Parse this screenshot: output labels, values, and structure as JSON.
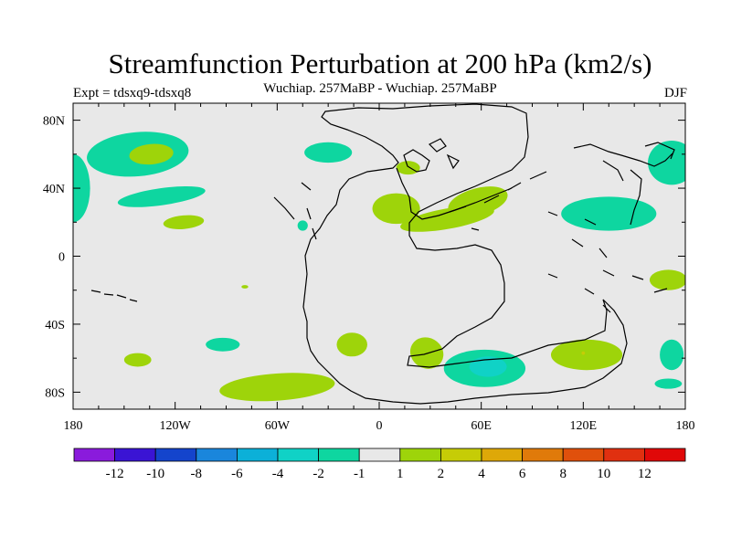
{
  "chart_data": {
    "type": "heatmap",
    "title": "Streamfunction Perturbation at 200 hPa (km2/s)",
    "left_label": "Expt = tdsxq9-tdsxq8",
    "center_label": "Wuchiap. 257MaBP - Wuchiap. 257MaBP",
    "right_label": "DJF",
    "x_ticks": [
      "180",
      "120W",
      "60W",
      "0",
      "60E",
      "120E",
      "180"
    ],
    "x_tick_values": [
      -180,
      -120,
      -60,
      0,
      60,
      120,
      180
    ],
    "y_ticks": [
      "80N",
      "40N",
      "0",
      "40S",
      "80S"
    ],
    "y_tick_values": [
      80,
      40,
      0,
      -40,
      -80
    ],
    "xlim": [
      -180,
      180
    ],
    "ylim": [
      -90,
      90
    ],
    "colorbar": {
      "labels": [
        "-12",
        "-10",
        "-8",
        "-6",
        "-4",
        "-2",
        "-1",
        "1",
        "2",
        "4",
        "6",
        "8",
        "10",
        "12"
      ],
      "colors": [
        "#8a1bdc",
        "#3a14d4",
        "#1444cc",
        "#1a86dc",
        "#0cb0d8",
        "#10d2c6",
        "#0ed6a0",
        "#e8e8e8",
        "#9ed40a",
        "#c6cc06",
        "#dea808",
        "#e07a0a",
        "#e0500c",
        "#e03010",
        "#e00808"
      ]
    },
    "regions": [
      {
        "level": "-1",
        "lon": -142,
        "lat": 60,
        "rx": 30,
        "ry": 13,
        "rot": -5
      },
      {
        "level": "1",
        "lon": -134,
        "lat": 60,
        "rx": 13,
        "ry": 6,
        "rot": -5
      },
      {
        "level": "-1",
        "lon": -180,
        "lat": 40,
        "rx": 10,
        "ry": 20,
        "rot": 0
      },
      {
        "level": "-1",
        "lon": -128,
        "lat": 35,
        "rx": 26,
        "ry": 5,
        "rot": -8
      },
      {
        "level": "1",
        "lon": -115,
        "lat": 20,
        "rx": 12,
        "ry": 4,
        "rot": -5
      },
      {
        "level": "-1",
        "lon": -30,
        "lat": 61,
        "rx": 14,
        "ry": 6,
        "rot": 0
      },
      {
        "level": "-1",
        "lon": -45,
        "lat": 18,
        "rx": 3,
        "ry": 3,
        "rot": 0
      },
      {
        "level": "1",
        "lon": 17,
        "lat": 52,
        "rx": 7,
        "ry": 4,
        "rot": 0
      },
      {
        "level": "1",
        "lon": 10,
        "lat": 28,
        "rx": 14,
        "ry": 9,
        "rot": 0
      },
      {
        "level": "1",
        "lon": 40,
        "lat": 22,
        "rx": 28,
        "ry": 6,
        "rot": -10
      },
      {
        "level": "1",
        "lon": 58,
        "lat": 32,
        "rx": 18,
        "ry": 8,
        "rot": -15
      },
      {
        "level": "-1",
        "lon": 135,
        "lat": 25,
        "rx": 28,
        "ry": 10,
        "rot": 0
      },
      {
        "level": "-1",
        "lon": 172,
        "lat": 55,
        "rx": 14,
        "ry": 13,
        "rot": 0
      },
      {
        "level": "1",
        "lon": 170,
        "lat": -14,
        "rx": 11,
        "ry": 6,
        "rot": 0
      },
      {
        "level": "1",
        "lon": -142,
        "lat": -61,
        "rx": 8,
        "ry": 4,
        "rot": 0
      },
      {
        "level": "-1",
        "lon": -92,
        "lat": -52,
        "rx": 10,
        "ry": 4,
        "rot": 0
      },
      {
        "level": "1",
        "lon": -79,
        "lat": -18,
        "rx": 2,
        "ry": 1,
        "rot": 0
      },
      {
        "level": "1",
        "lon": -16,
        "lat": -52,
        "rx": 9,
        "ry": 7,
        "rot": 0
      },
      {
        "level": "1",
        "lon": -60,
        "lat": -77,
        "rx": 34,
        "ry": 8,
        "rot": -4
      },
      {
        "level": "1",
        "lon": 28,
        "lat": -57,
        "rx": 10,
        "ry": 9,
        "rot": 30
      },
      {
        "level": "-1",
        "lon": 62,
        "lat": -66,
        "rx": 24,
        "ry": 11,
        "rot": 0
      },
      {
        "level": "-2",
        "lon": 64,
        "lat": -65,
        "rx": 11,
        "ry": 6,
        "rot": 0
      },
      {
        "level": "1",
        "lon": 122,
        "lat": -58,
        "rx": 21,
        "ry": 9,
        "rot": 0
      },
      {
        "level": "2",
        "lon": 120,
        "lat": -57,
        "rx": 1,
        "ry": 1,
        "rot": 0
      },
      {
        "level": "-1",
        "lon": 172,
        "lat": -58,
        "rx": 7,
        "ry": 9,
        "rot": 0
      },
      {
        "level": "-1",
        "lon": 170,
        "lat": -75,
        "rx": 8,
        "ry": 3,
        "rot": 0
      }
    ]
  }
}
